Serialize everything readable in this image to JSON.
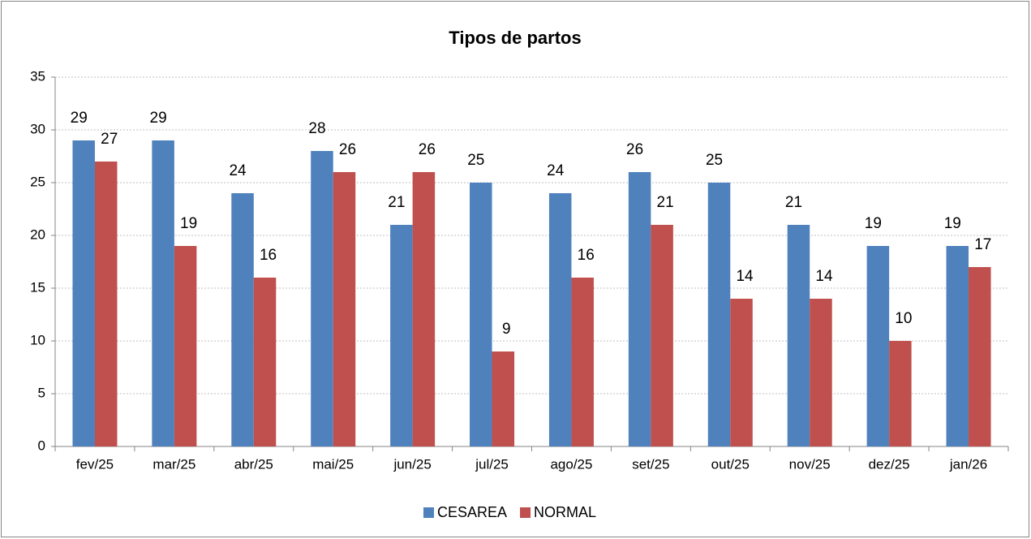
{
  "chart_data": {
    "type": "bar",
    "title": "Tipos de partos",
    "categories": [
      "fev/25",
      "mar/25",
      "abr/25",
      "mai/25",
      "jun/25",
      "jul/25",
      "ago/25",
      "set/25",
      "out/25",
      "nov/25",
      "dez/25",
      "jan/26"
    ],
    "series": [
      {
        "name": "CESAREA",
        "color": "#4f81bd",
        "values": [
          29,
          29,
          24,
          28,
          21,
          25,
          24,
          26,
          25,
          21,
          19,
          19
        ]
      },
      {
        "name": "NORMAL",
        "color": "#c0504d",
        "values": [
          27,
          19,
          16,
          26,
          26,
          9,
          16,
          21,
          14,
          14,
          10,
          17
        ]
      }
    ],
    "ylim": [
      0,
      35
    ],
    "yticks": [
      0,
      5,
      10,
      15,
      20,
      25,
      30,
      35
    ],
    "grid": true,
    "legend": "bottom"
  }
}
